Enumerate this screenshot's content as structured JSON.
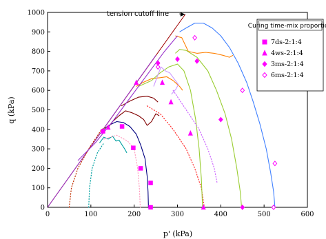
{
  "chart_data": {
    "type": "line",
    "title": "",
    "xlabel": "p' (kPa)",
    "ylabel": "q (kPa)",
    "xlim": [
      0,
      600
    ],
    "ylim": [
      0,
      1000
    ],
    "xticks": [
      0,
      100,
      200,
      300,
      400,
      500,
      600
    ],
    "yticks": [
      0,
      100,
      200,
      300,
      400,
      500,
      600,
      700,
      800,
      900,
      1000
    ],
    "grid": false,
    "legend_position": "top-right",
    "legend_title": "Curing time-mix proportion",
    "annotation": {
      "text": "tension cutoff line",
      "arrow_to": [
        318,
        990
      ]
    },
    "legend": [
      {
        "label": "7ds-2:1:4",
        "marker": "square",
        "color": "#ff00ff",
        "filled": true
      },
      {
        "label": "4ws-2:1:4",
        "marker": "triangle",
        "color": "#ff00ff",
        "filled": true
      },
      {
        "label": "3ms-2:1:4",
        "marker": "diamond",
        "color": "#ff00ff",
        "filled": true
      },
      {
        "label": "6ms-2:1:4",
        "marker": "diamond",
        "color": "#ff00ff",
        "filled": false
      }
    ],
    "failure_lines": [
      {
        "color": "#a00000",
        "points": [
          [
            0,
            0
          ],
          [
            318,
            990
          ]
        ]
      },
      {
        "color": "#9933cc",
        "points": [
          [
            0,
            0
          ],
          [
            250,
            780
          ]
        ]
      }
    ],
    "series": [
      {
        "color": "#000080",
        "style": "solid",
        "points": [
          [
            125,
            380
          ],
          [
            135,
            410
          ],
          [
            145,
            425
          ],
          [
            160,
            440
          ],
          [
            175,
            435
          ],
          [
            190,
            415
          ],
          [
            205,
            375
          ],
          [
            215,
            320
          ],
          [
            225,
            250
          ],
          [
            230,
            160
          ],
          [
            232,
            80
          ],
          [
            233,
            0
          ]
        ]
      },
      {
        "color": "#00a0a0",
        "style": "solid",
        "points": [
          [
            120,
            330
          ],
          [
            130,
            360
          ],
          [
            140,
            350
          ],
          [
            150,
            365
          ],
          [
            158,
            340
          ],
          [
            165,
            345
          ],
          [
            172,
            320
          ],
          [
            178,
            300
          ],
          [
            183,
            280
          ]
        ]
      },
      {
        "color": "#00a0a0",
        "style": "dotted",
        "points": [
          [
            95,
            0
          ],
          [
            97,
            100
          ],
          [
            103,
            200
          ],
          [
            115,
            280
          ],
          [
            130,
            330
          ]
        ]
      },
      {
        "color": "#ff9ec0",
        "style": "dotted",
        "points": [
          [
            130,
            350
          ],
          [
            160,
            370
          ],
          [
            185,
            340
          ],
          [
            200,
            300
          ],
          [
            208,
            200
          ],
          [
            212,
            100
          ],
          [
            214,
            0
          ]
        ]
      },
      {
        "color": "#800000",
        "style": "solid",
        "points": [
          [
            140,
            410
          ],
          [
            150,
            440
          ],
          [
            165,
            470
          ],
          [
            180,
            495
          ],
          [
            195,
            485
          ],
          [
            210,
            470
          ],
          [
            222,
            450
          ],
          [
            230,
            420
          ],
          [
            240,
            440
          ],
          [
            250,
            480
          ],
          [
            258,
            470
          ]
        ]
      },
      {
        "color": "#800000",
        "style": "solid",
        "points": [
          [
            170,
            520
          ],
          [
            190,
            545
          ],
          [
            210,
            565
          ],
          [
            230,
            570
          ],
          [
            245,
            560
          ],
          [
            255,
            540
          ]
        ]
      },
      {
        "color": "#c03000",
        "style": "dotted",
        "points": [
          [
            50,
            0
          ],
          [
            55,
            100
          ],
          [
            70,
            200
          ],
          [
            95,
            300
          ],
          [
            125,
            400
          ],
          [
            140,
            415
          ]
        ]
      },
      {
        "color": "#ff3333",
        "style": "dotted",
        "points": [
          [
            230,
            520
          ],
          [
            260,
            480
          ],
          [
            290,
            400
          ],
          [
            320,
            300
          ],
          [
            340,
            200
          ],
          [
            355,
            100
          ],
          [
            362,
            0
          ]
        ]
      },
      {
        "color": "#ff8000",
        "style": "solid",
        "points": [
          [
            205,
            620
          ],
          [
            220,
            640
          ],
          [
            240,
            660
          ],
          [
            260,
            665
          ],
          [
            275,
            670
          ],
          [
            290,
            650
          ],
          [
            305,
            620
          ],
          [
            312,
            600
          ]
        ]
      },
      {
        "color": "#ff8000",
        "style": "solid",
        "points": [
          [
            295,
            880
          ],
          [
            310,
            870
          ],
          [
            325,
            800
          ],
          [
            345,
            790
          ],
          [
            365,
            795
          ],
          [
            385,
            790
          ],
          [
            405,
            780
          ],
          [
            420,
            770
          ],
          [
            428,
            780
          ]
        ]
      },
      {
        "color": "#9acd32",
        "style": "solid",
        "points": [
          [
            210,
            620
          ],
          [
            240,
            650
          ],
          [
            260,
            690
          ],
          [
            280,
            720
          ],
          [
            300,
            735
          ],
          [
            315,
            700
          ],
          [
            330,
            600
          ],
          [
            342,
            450
          ],
          [
            350,
            300
          ],
          [
            355,
            150
          ],
          [
            358,
            0
          ]
        ]
      },
      {
        "color": "#9acd32",
        "style": "solid",
        "points": [
          [
            295,
            790
          ],
          [
            305,
            810
          ],
          [
            320,
            805
          ],
          [
            345,
            770
          ],
          [
            370,
            700
          ],
          [
            390,
            600
          ],
          [
            410,
            480
          ],
          [
            425,
            350
          ],
          [
            437,
            200
          ],
          [
            445,
            80
          ],
          [
            448,
            0
          ]
        ]
      },
      {
        "color": "#cc99ff",
        "style": "solid",
        "points": [
          [
            245,
            620
          ],
          [
            255,
            680
          ],
          [
            262,
            720
          ],
          [
            272,
            700
          ],
          [
            282,
            690
          ],
          [
            292,
            660
          ],
          [
            302,
            630
          ],
          [
            296,
            605
          ],
          [
            286,
            580
          ]
        ]
      },
      {
        "color": "#cc66ff",
        "style": "dotted",
        "points": [
          [
            290,
            600
          ],
          [
            320,
            500
          ],
          [
            350,
            400
          ],
          [
            370,
            300
          ],
          [
            385,
            200
          ],
          [
            392,
            120
          ]
        ]
      },
      {
        "color": "#4080ff",
        "style": "solid",
        "points": [
          [
            305,
            900
          ],
          [
            320,
            920
          ],
          [
            340,
            945
          ],
          [
            360,
            945
          ],
          [
            380,
            920
          ],
          [
            400,
            880
          ],
          [
            420,
            820
          ],
          [
            440,
            740
          ],
          [
            460,
            640
          ],
          [
            475,
            540
          ],
          [
            490,
            430
          ],
          [
            505,
            300
          ],
          [
            515,
            180
          ],
          [
            522,
            80
          ],
          [
            525,
            0
          ]
        ]
      },
      {
        "color": "#9933cc",
        "style": "solid",
        "points": [
          [
            70,
            240
          ],
          [
            110,
            330
          ],
          [
            150,
            440
          ],
          [
            190,
            560
          ],
          [
            230,
            680
          ],
          [
            270,
            800
          ],
          [
            300,
            880
          ]
        ]
      }
    ],
    "markers": [
      {
        "series": "7ds-2:1:4",
        "marker": "square",
        "filled": true,
        "points": [
          [
            128,
            390
          ],
          [
            172,
            415
          ],
          [
            198,
            305
          ],
          [
            215,
            200
          ],
          [
            238,
            125
          ],
          [
            238,
            0
          ]
        ]
      },
      {
        "series": "4ws-2:1:4",
        "marker": "triangle",
        "filled": true,
        "points": [
          [
            140,
            410
          ],
          [
            205,
            640
          ],
          [
            265,
            640
          ],
          [
            285,
            540
          ],
          [
            330,
            380
          ],
          [
            360,
            0
          ]
        ]
      },
      {
        "series": "3ms-2:1:4",
        "marker": "diamond",
        "filled": true,
        "points": [
          [
            255,
            740
          ],
          [
            300,
            760
          ],
          [
            345,
            750
          ],
          [
            400,
            450
          ],
          [
            450,
            0
          ]
        ]
      },
      {
        "series": "6ms-2:1:4",
        "marker": "diamond",
        "filled": false,
        "points": [
          [
            255,
            720
          ],
          [
            340,
            870
          ],
          [
            450,
            600
          ],
          [
            525,
            225
          ],
          [
            522,
            0
          ]
        ]
      }
    ]
  }
}
